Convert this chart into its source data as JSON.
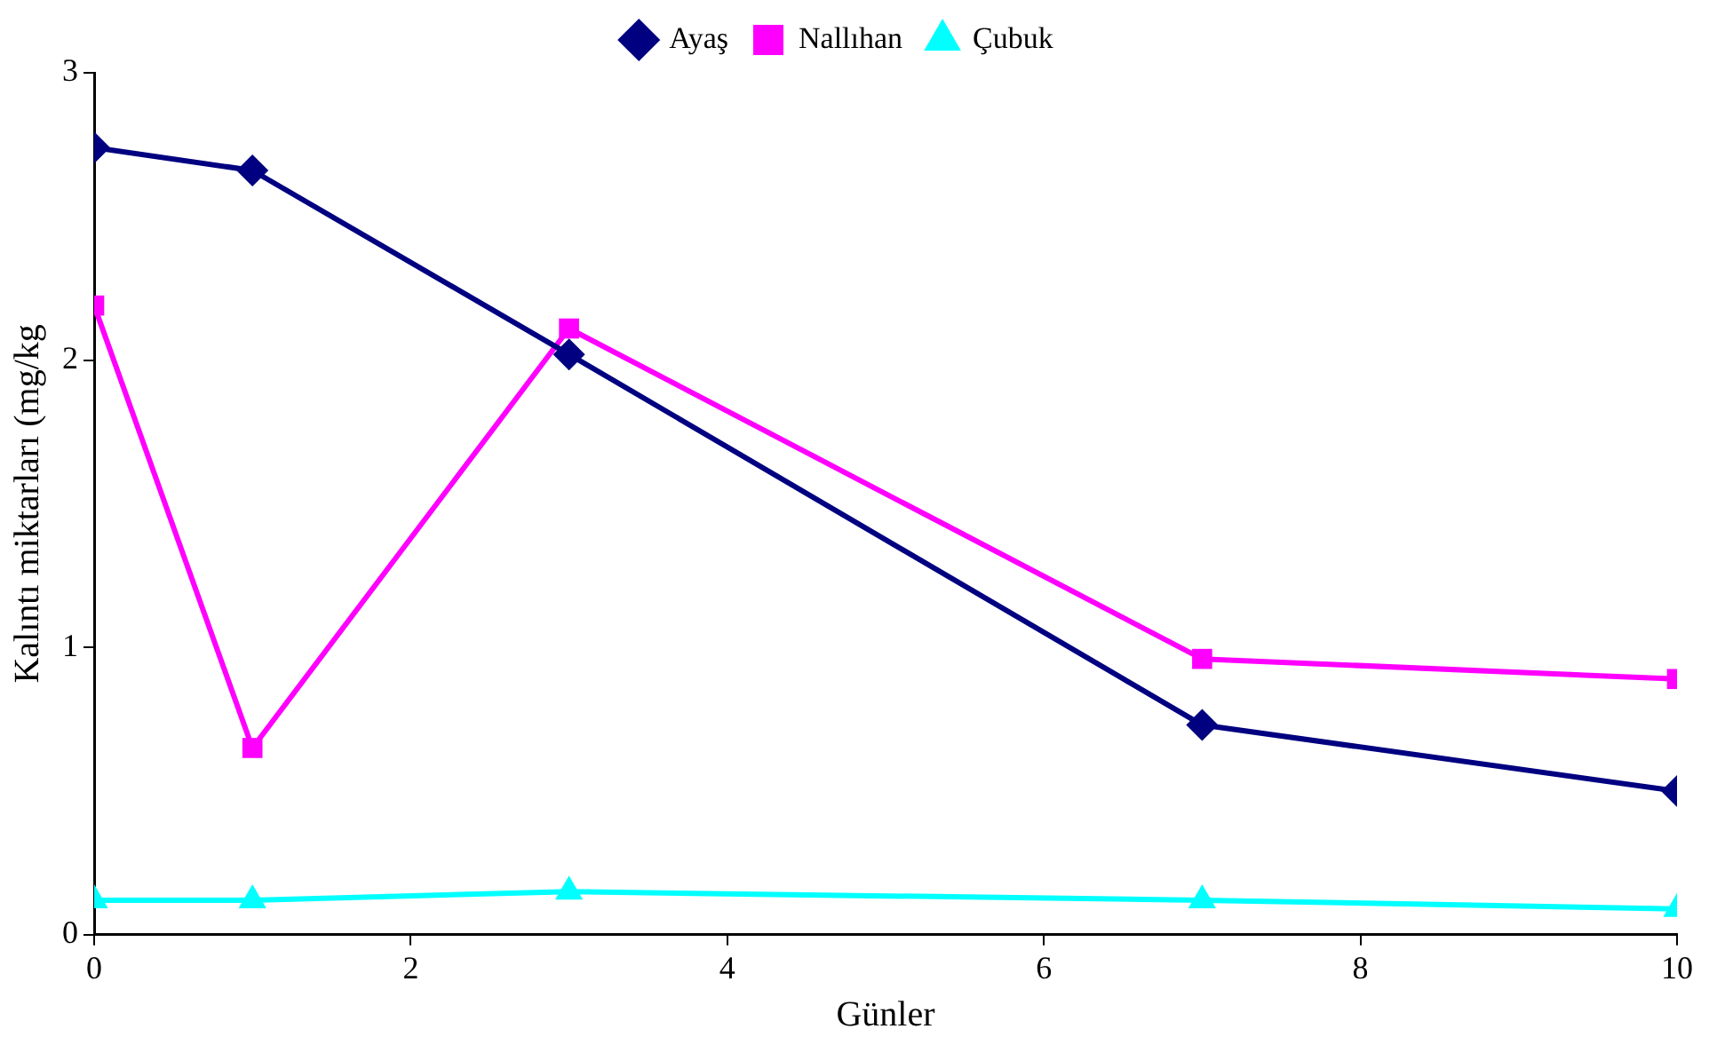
{
  "chart_data": {
    "type": "line",
    "xlabel": "Günler",
    "ylabel": "Kalıntı miktarları (mg/kg",
    "x": [
      0,
      1,
      3,
      7,
      10
    ],
    "series": [
      {
        "name": "Ayaş",
        "color": "#000080",
        "marker": "diamond",
        "values": [
          2.74,
          2.66,
          2.02,
          0.73,
          0.5
        ]
      },
      {
        "name": "Nallıhan",
        "color": "#ff00ff",
        "marker": "square",
        "values": [
          2.19,
          0.65,
          2.11,
          0.96,
          0.89
        ]
      },
      {
        "name": "Çubuk",
        "color": "#00ffff",
        "marker": "triangle",
        "values": [
          0.12,
          0.12,
          0.15,
          0.12,
          0.09
        ]
      }
    ],
    "xlim": [
      0,
      10
    ],
    "xticks": [
      0,
      2,
      4,
      6,
      8,
      10
    ],
    "ylim": [
      0,
      3
    ],
    "yticks": [
      0,
      1,
      2,
      3
    ],
    "grid": false,
    "legend": "top",
    "line_style": "solid"
  }
}
